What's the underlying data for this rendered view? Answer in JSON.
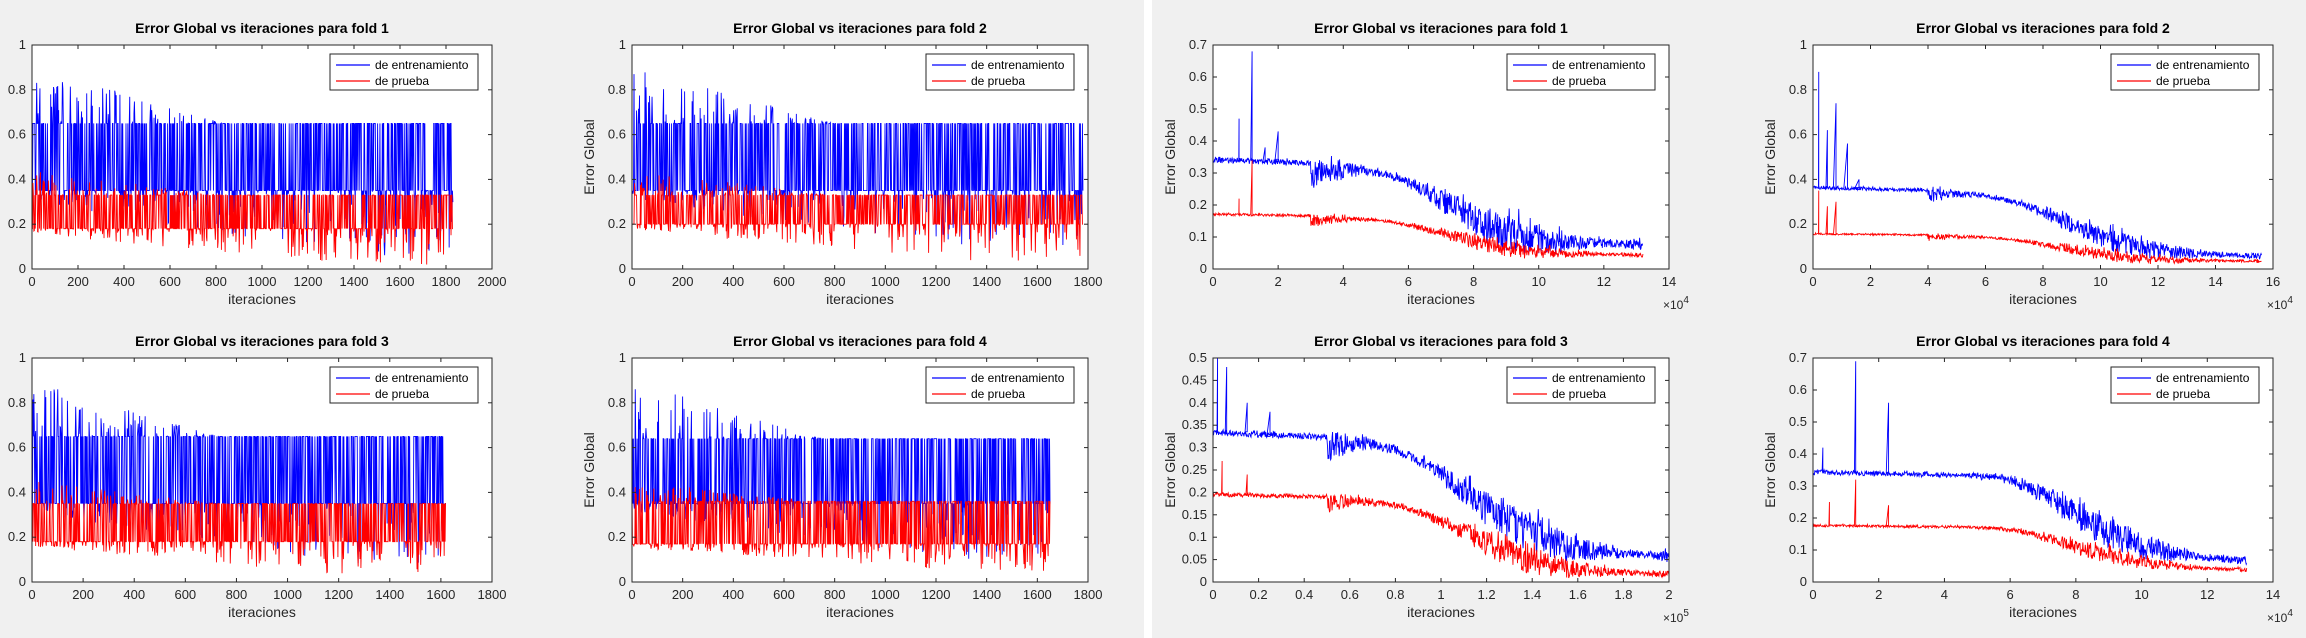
{
  "colors": {
    "train": "#0000ff",
    "test": "#ff0000",
    "panel_background": "#f0f0f0",
    "separator": "#ffffff"
  },
  "chart_data": [
    {
      "type": "line",
      "panel": "left",
      "row": 0,
      "col": 0,
      "title": "Error Global vs iteraciones para  fold 1",
      "xlabel": "iteraciones",
      "ylabel": "",
      "xlim": [
        0,
        2000
      ],
      "ylim": [
        0,
        1
      ],
      "xticks": [
        "0",
        "200",
        "400",
        "600",
        "800",
        "1000",
        "1200",
        "1400",
        "1600",
        "1800",
        "2000"
      ],
      "yticks": [
        "0",
        "0.2",
        "0.4",
        "0.6",
        "0.8",
        "1"
      ],
      "x_exponent": "",
      "legend": "top-right",
      "series": [
        {
          "name": "de entrenamiento",
          "color": "#0000ff",
          "pattern": "binary",
          "x_end": 1830,
          "base": 0.35,
          "high": 0.65,
          "spike_max": [
            0.92,
            0.65
          ],
          "low_min": 0.05,
          "density": 0.6
        },
        {
          "name": "de prueba",
          "color": "#ff0000",
          "pattern": "binary",
          "x_end": 1830,
          "base": 0.18,
          "high": 0.33,
          "spike_max": [
            0.44,
            0.33
          ],
          "low_min": 0.02,
          "density": 0.6
        }
      ]
    },
    {
      "type": "line",
      "panel": "left",
      "row": 0,
      "col": 1,
      "title": "Error Global vs iteraciones para  fold 2",
      "xlabel": "iteraciones",
      "ylabel": "Error Global",
      "xlim": [
        0,
        1800
      ],
      "ylim": [
        0,
        1
      ],
      "xticks": [
        "0",
        "200",
        "400",
        "600",
        "800",
        "1000",
        "1200",
        "1400",
        "1600",
        "1800"
      ],
      "yticks": [
        "0",
        "0.2",
        "0.4",
        "0.6",
        "0.8",
        "1"
      ],
      "x_exponent": "",
      "legend": "top-right",
      "series": [
        {
          "name": "de entrenamiento",
          "color": "#0000ff",
          "pattern": "binary",
          "x_end": 1780,
          "base": 0.35,
          "high": 0.65,
          "spike_max": [
            0.9,
            0.65
          ],
          "low_min": 0.08,
          "density": 0.6
        },
        {
          "name": "de prueba",
          "color": "#ff0000",
          "pattern": "binary",
          "x_end": 1780,
          "base": 0.2,
          "high": 0.33,
          "spike_max": [
            0.44,
            0.33
          ],
          "low_min": 0.03,
          "density": 0.6
        }
      ]
    },
    {
      "type": "line",
      "panel": "left",
      "row": 1,
      "col": 0,
      "title": "Error Global vs iteraciones para  fold 3",
      "xlabel": "iteraciones",
      "ylabel": "",
      "xlim": [
        0,
        1800
      ],
      "ylim": [
        0,
        1
      ],
      "xticks": [
        "0",
        "200",
        "400",
        "600",
        "800",
        "1000",
        "1200",
        "1400",
        "1600",
        "1800"
      ],
      "yticks": [
        "0",
        "0.2",
        "0.4",
        "0.6",
        "0.8",
        "1"
      ],
      "x_exponent": "",
      "legend": "top-right",
      "series": [
        {
          "name": "de entrenamiento",
          "color": "#0000ff",
          "pattern": "binary",
          "x_end": 1620,
          "base": 0.35,
          "high": 0.65,
          "spike_max": [
            0.9,
            0.65
          ],
          "low_min": 0.08,
          "density": 0.6
        },
        {
          "name": "de prueba",
          "color": "#ff0000",
          "pattern": "binary",
          "x_end": 1620,
          "base": 0.18,
          "high": 0.35,
          "spike_max": [
            0.45,
            0.35
          ],
          "low_min": 0.03,
          "density": 0.6
        }
      ]
    },
    {
      "type": "line",
      "panel": "left",
      "row": 1,
      "col": 1,
      "title": "Error Global vs iteraciones para  fold 4",
      "xlabel": "iteraciones",
      "ylabel": "Error Global",
      "xlim": [
        0,
        1800
      ],
      "ylim": [
        0,
        1
      ],
      "xticks": [
        "0",
        "200",
        "400",
        "600",
        "800",
        "1000",
        "1200",
        "1400",
        "1600",
        "1800"
      ],
      "yticks": [
        "0",
        "0.2",
        "0.4",
        "0.6",
        "0.8",
        "1"
      ],
      "x_exponent": "",
      "legend": "top-right",
      "series": [
        {
          "name": "de entrenamiento",
          "color": "#0000ff",
          "pattern": "binary",
          "x_end": 1650,
          "base": 0.35,
          "high": 0.64,
          "spike_max": [
            0.9,
            0.64
          ],
          "low_min": 0.1,
          "density": 0.6
        },
        {
          "name": "de prueba",
          "color": "#ff0000",
          "pattern": "binary",
          "x_end": 1650,
          "base": 0.17,
          "high": 0.36,
          "spike_max": [
            0.45,
            0.36
          ],
          "low_min": 0.05,
          "density": 0.6
        }
      ]
    },
    {
      "type": "line",
      "panel": "right",
      "row": 0,
      "col": 0,
      "title": "Error Global vs iteraciones para  fold 1",
      "xlabel": "iteraciones",
      "ylabel": "Error Global",
      "xlim": [
        0,
        14
      ],
      "ylim": [
        0,
        0.7
      ],
      "xticks": [
        "0",
        "2",
        "4",
        "6",
        "8",
        "10",
        "12",
        "14"
      ],
      "yticks": [
        "0",
        "0.1",
        "0.2",
        "0.3",
        "0.4",
        "0.5",
        "0.6",
        "0.7"
      ],
      "x_exponent": "4",
      "legend": "top-right",
      "series": [
        {
          "name": "de entrenamiento",
          "color": "#0000ff",
          "pattern": "decay",
          "x_end": 13.2,
          "start": 0.35,
          "plateau_end": 3.0,
          "end": 0.09,
          "noise": 0.12,
          "spikes": [
            [
              0.8,
              0.47
            ],
            [
              1.2,
              0.68
            ],
            [
              1.6,
              0.38
            ],
            [
              2.0,
              0.43
            ]
          ]
        },
        {
          "name": "de prueba",
          "color": "#ff0000",
          "pattern": "decay",
          "x_end": 13.2,
          "start": 0.175,
          "plateau_end": 3.0,
          "end": 0.05,
          "noise": 0.05,
          "spikes": [
            [
              0.8,
              0.22
            ],
            [
              1.2,
              0.34
            ]
          ]
        }
      ]
    },
    {
      "type": "line",
      "panel": "right",
      "row": 0,
      "col": 1,
      "title": "Error Global vs iteraciones para  fold 2",
      "xlabel": "iteraciones",
      "ylabel": "Error Global",
      "xlim": [
        0,
        16
      ],
      "ylim": [
        0,
        1
      ],
      "xticks": [
        "0",
        "2",
        "4",
        "6",
        "8",
        "10",
        "12",
        "14",
        "16"
      ],
      "yticks": [
        "0",
        "0.2",
        "0.4",
        "0.6",
        "0.8",
        "1"
      ],
      "x_exponent": "4",
      "legend": "top-right",
      "series": [
        {
          "name": "de entrenamiento",
          "color": "#0000ff",
          "pattern": "decay",
          "x_end": 15.6,
          "start": 0.37,
          "plateau_end": 4.0,
          "end": 0.07,
          "noise": 0.1,
          "spikes": [
            [
              0.2,
              0.88
            ],
            [
              0.5,
              0.62
            ],
            [
              0.8,
              0.74
            ],
            [
              1.2,
              0.56
            ],
            [
              1.6,
              0.4
            ]
          ]
        },
        {
          "name": "de prueba",
          "color": "#ff0000",
          "pattern": "decay",
          "x_end": 15.6,
          "start": 0.16,
          "plateau_end": 4.0,
          "end": 0.04,
          "noise": 0.05,
          "spikes": [
            [
              0.2,
              0.35
            ],
            [
              0.5,
              0.28
            ],
            [
              0.8,
              0.3
            ]
          ]
        }
      ]
    },
    {
      "type": "line",
      "panel": "right",
      "row": 1,
      "col": 0,
      "title": "Error Global vs iteraciones para  fold 3",
      "xlabel": "iteraciones",
      "ylabel": "Error Global",
      "xlim": [
        0,
        2
      ],
      "ylim": [
        0,
        0.5
      ],
      "xticks": [
        "0",
        "0.2",
        "0.4",
        "0.6",
        "0.8",
        "1",
        "1.2",
        "1.4",
        "1.6",
        "1.8",
        "2"
      ],
      "yticks": [
        "0",
        "0.05",
        "0.1",
        "0.15",
        "0.2",
        "0.25",
        "0.3",
        "0.35",
        "0.4",
        "0.45",
        "0.5"
      ],
      "x_exponent": "5",
      "legend": "top-right",
      "series": [
        {
          "name": "de entrenamiento",
          "color": "#0000ff",
          "pattern": "decay",
          "x_end": 2.0,
          "start": 0.34,
          "plateau_end": 0.5,
          "end": 0.07,
          "noise": 0.09,
          "spikes": [
            [
              0.02,
              0.5
            ],
            [
              0.06,
              0.48
            ],
            [
              0.15,
              0.4
            ],
            [
              0.25,
              0.38
            ]
          ]
        },
        {
          "name": "de prueba",
          "color": "#ff0000",
          "pattern": "decay",
          "x_end": 2.0,
          "start": 0.2,
          "plateau_end": 0.5,
          "end": 0.025,
          "noise": 0.06,
          "spikes": [
            [
              0.04,
              0.27
            ],
            [
              0.15,
              0.24
            ]
          ]
        }
      ]
    },
    {
      "type": "line",
      "panel": "right",
      "row": 1,
      "col": 1,
      "title": "Error Global vs iteraciones para  fold 4",
      "xlabel": "iteraciones",
      "ylabel": "Error Global",
      "xlim": [
        0,
        14
      ],
      "ylim": [
        0,
        0.7
      ],
      "xticks": [
        "0",
        "2",
        "4",
        "6",
        "8",
        "10",
        "12",
        "14"
      ],
      "yticks": [
        "0",
        "0.1",
        "0.2",
        "0.3",
        "0.4",
        "0.5",
        "0.6",
        "0.7"
      ],
      "x_exponent": "4",
      "legend": "top-right",
      "series": [
        {
          "name": "de entrenamiento",
          "color": "#0000ff",
          "pattern": "decay",
          "x_end": 13.2,
          "start": 0.35,
          "plateau_end": 5.0,
          "end": 0.08,
          "noise": 0.1,
          "spikes": [
            [
              0.3,
              0.42
            ],
            [
              1.3,
              0.69
            ],
            [
              2.3,
              0.56
            ]
          ]
        },
        {
          "name": "de prueba",
          "color": "#ff0000",
          "pattern": "decay",
          "x_end": 13.2,
          "start": 0.18,
          "plateau_end": 5.0,
          "end": 0.045,
          "noise": 0.05,
          "spikes": [
            [
              0.5,
              0.25
            ],
            [
              1.3,
              0.32
            ],
            [
              2.3,
              0.24
            ]
          ]
        }
      ]
    }
  ]
}
